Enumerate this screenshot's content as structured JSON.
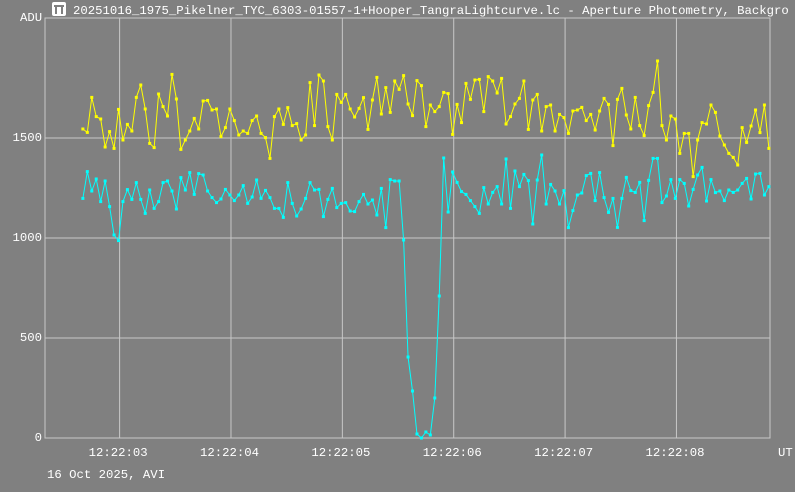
{
  "window": {
    "title": "20251016_1975_Pikelner_TYC_6303-01557-1+Hooper_TangraLightcurve.lc - Aperture Photometry, Backgro",
    "icon": "tangra-app-icon"
  },
  "footer": {
    "date_label": "16 Oct 2025, AVI"
  },
  "chart_data": {
    "type": "line",
    "title": "",
    "ylabel": "ADU",
    "xlabel": "UT",
    "ylim": [
      0,
      2100
    ],
    "yticks": [
      0,
      500,
      1000,
      1500
    ],
    "ytick_labels": [
      "0",
      "500",
      "1000",
      "1500"
    ],
    "xticks": [
      "12:22:03",
      "12:22:04",
      "12:22:05",
      "12:22:06",
      "12:22:07",
      "12:22:08"
    ],
    "x_start": "12:22:02.67",
    "x_step_s": 0.04,
    "x_range_s": [
      2.33,
      8.84
    ],
    "grid": true,
    "background": "#808080",
    "grid_color": "#c8c8c8",
    "series": [
      {
        "color": "#ffff00",
        "values": [
          1545,
          1528,
          1703,
          1607,
          1595,
          1455,
          1532,
          1448,
          1643,
          1490,
          1568,
          1535,
          1703,
          1765,
          1645,
          1473,
          1452,
          1720,
          1657,
          1610,
          1818,
          1695,
          1443,
          1490,
          1535,
          1598,
          1545,
          1685,
          1688,
          1640,
          1645,
          1507,
          1552,
          1645,
          1587,
          1515,
          1535,
          1523,
          1587,
          1610,
          1523,
          1502,
          1398,
          1607,
          1645,
          1568,
          1652,
          1562,
          1572,
          1490,
          1515,
          1777,
          1562,
          1815,
          1785,
          1557,
          1490,
          1718,
          1678,
          1718,
          1645,
          1605,
          1648,
          1702,
          1543,
          1690,
          1803,
          1620,
          1752,
          1628,
          1785,
          1743,
          1812,
          1670,
          1612,
          1787,
          1762,
          1557,
          1665,
          1632,
          1657,
          1728,
          1722,
          1518,
          1668,
          1577,
          1773,
          1693,
          1790,
          1793,
          1632,
          1807,
          1785,
          1725,
          1798,
          1570,
          1607,
          1670,
          1698,
          1785,
          1543,
          1690,
          1718,
          1535,
          1657,
          1665,
          1535,
          1618,
          1602,
          1523,
          1635,
          1640,
          1653,
          1587,
          1618,
          1540,
          1635,
          1698,
          1668,
          1462,
          1693,
          1748,
          1615,
          1545,
          1703,
          1562,
          1512,
          1662,
          1728,
          1885,
          1562,
          1490,
          1610,
          1595,
          1423,
          1523,
          1523,
          1307,
          1490,
          1577,
          1570,
          1665,
          1628,
          1510,
          1465,
          1423,
          1403,
          1365,
          1552,
          1478,
          1560,
          1640,
          1527,
          1665,
          1448
        ]
      },
      {
        "color": "#00ffff",
        "values": [
          1198,
          1332,
          1235,
          1295,
          1182,
          1285,
          1157,
          1015,
          987,
          1182,
          1242,
          1193,
          1277,
          1193,
          1123,
          1240,
          1148,
          1182,
          1277,
          1285,
          1235,
          1145,
          1302,
          1240,
          1327,
          1218,
          1322,
          1315,
          1235,
          1202,
          1177,
          1195,
          1243,
          1215,
          1187,
          1215,
          1262,
          1173,
          1205,
          1290,
          1198,
          1238,
          1202,
          1148,
          1148,
          1103,
          1277,
          1173,
          1110,
          1145,
          1198,
          1277,
          1240,
          1243,
          1107,
          1193,
          1248,
          1152,
          1173,
          1177,
          1135,
          1132,
          1182,
          1218,
          1170,
          1190,
          1115,
          1248,
          1052,
          1292,
          1285,
          1285,
          990,
          405,
          235,
          20,
          0,
          30,
          15,
          200,
          710,
          1400,
          1130,
          1330,
          1278,
          1232,
          1218,
          1187,
          1157,
          1123,
          1252,
          1170,
          1228,
          1257,
          1170,
          1395,
          1148,
          1335,
          1257,
          1318,
          1287,
          1070,
          1290,
          1415,
          1170,
          1268,
          1235,
          1170,
          1237,
          1052,
          1137,
          1215,
          1225,
          1312,
          1323,
          1187,
          1327,
          1202,
          1128,
          1198,
          1053,
          1198,
          1303,
          1237,
          1228,
          1278,
          1087,
          1288,
          1398,
          1398,
          1177,
          1210,
          1292,
          1198,
          1292,
          1273,
          1160,
          1243,
          1315,
          1353,
          1185,
          1292,
          1227,
          1235,
          1187,
          1240,
          1228,
          1240,
          1273,
          1298,
          1195,
          1320,
          1323,
          1215,
          1257
        ]
      }
    ]
  }
}
